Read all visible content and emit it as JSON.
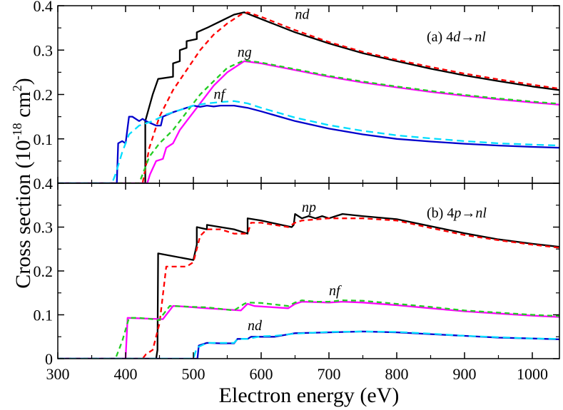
{
  "chart_data": {
    "type": "line",
    "xlabel": "Electron energy (eV)",
    "ylabel_text": "Cross section (10",
    "ylabel_exp": "-18",
    "ylabel_unit": " cm",
    "ylabel_unit_exp": "2",
    "ylabel_close": ")",
    "xlim": [
      300,
      1040
    ],
    "xticks": [
      "300",
      "400",
      "500",
      "600",
      "700",
      "800",
      "900",
      "1000"
    ],
    "xtick_values": [
      300,
      400,
      500,
      600,
      700,
      800,
      900,
      1000
    ],
    "panels": [
      {
        "id": "a",
        "label_prefix": "(a)  4",
        "label_sub": "d",
        "label_arrow": "→",
        "label_nl": "nl",
        "ylim": [
          0,
          0.4
        ],
        "yticks": [
          "0.1",
          "0.2",
          "0.3",
          "0.4"
        ],
        "ytick_values": [
          0.1,
          0.2,
          0.3,
          0.4
        ],
        "annotations": [
          {
            "text": "nd",
            "x": 650,
            "y": 0.37
          },
          {
            "text": "ng",
            "x": 565,
            "y": 0.285
          },
          {
            "text": "nf",
            "x": 530,
            "y": 0.19
          }
        ],
        "series": [
          {
            "name": "nd solid",
            "color": "#000000",
            "dash": "",
            "x": [
              300,
              429,
              429,
              440,
              448,
              448,
              470,
              470,
              480,
              480,
              490,
              490,
              505,
              505,
              520,
              540,
              560,
              575,
              600,
              650,
              700,
              750,
              800,
              850,
              900,
              950,
              1000,
              1040
            ],
            "y": [
              0,
              0,
              0.14,
              0.2,
              0.235,
              0.235,
              0.24,
              0.27,
              0.275,
              0.3,
              0.305,
              0.32,
              0.325,
              0.34,
              0.35,
              0.365,
              0.38,
              0.385,
              0.37,
              0.34,
              0.315,
              0.293,
              0.275,
              0.258,
              0.243,
              0.23,
              0.218,
              0.21
            ]
          },
          {
            "name": "nd dashed",
            "color": "#ff0000",
            "dash": "7,5",
            "x": [
              300,
              425,
              435,
              450,
              470,
              490,
              510,
              530,
              550,
              570,
              580,
              600,
              650,
              700,
              750,
              800,
              850,
              900,
              950,
              1000,
              1040
            ],
            "y": [
              0,
              0,
              0.08,
              0.15,
              0.21,
              0.255,
              0.3,
              0.335,
              0.36,
              0.38,
              0.385,
              0.375,
              0.345,
              0.318,
              0.296,
              0.278,
              0.262,
              0.247,
              0.234,
              0.222,
              0.213
            ]
          },
          {
            "name": "ng solid",
            "color": "#ff00ff",
            "dash": "",
            "x": [
              300,
              432,
              436,
              445,
              455,
              460,
              470,
              480,
              490,
              500,
              515,
              530,
              550,
              575,
              600,
              650,
              700,
              750,
              800,
              850,
              900,
              950,
              1000,
              1040
            ],
            "y": [
              0,
              0,
              0.02,
              0.05,
              0.055,
              0.08,
              0.09,
              0.12,
              0.14,
              0.16,
              0.19,
              0.22,
              0.25,
              0.275,
              0.27,
              0.255,
              0.24,
              0.227,
              0.216,
              0.206,
              0.197,
              0.189,
              0.182,
              0.177
            ]
          },
          {
            "name": "ng dashed",
            "color": "#22cc22",
            "dash": "7,5",
            "x": [
              300,
              420,
              425,
              435,
              450,
              470,
              490,
              510,
              530,
              550,
              575,
              600,
              650,
              700,
              750,
              800,
              850,
              900,
              950,
              1000,
              1040
            ],
            "y": [
              0,
              0,
              0.02,
              0.06,
              0.09,
              0.12,
              0.16,
              0.2,
              0.23,
              0.26,
              0.277,
              0.272,
              0.257,
              0.242,
              0.229,
              0.218,
              0.208,
              0.199,
              0.191,
              0.184,
              0.179
            ]
          },
          {
            "name": "nf solid",
            "color": "#0000cc",
            "dash": "",
            "x": [
              300,
              387,
              389,
              395,
              400,
              405,
              410,
              420,
              425,
              430,
              445,
              452,
              455,
              470,
              480,
              490,
              500,
              510,
              520,
              530,
              540,
              560,
              580,
              600,
              650,
              700,
              750,
              800,
              850,
              900,
              950,
              1000,
              1040
            ],
            "y": [
              0,
              0,
              0.09,
              0.095,
              0.09,
              0.15,
              0.15,
              0.14,
              0.145,
              0.14,
              0.13,
              0.13,
              0.15,
              0.16,
              0.165,
              0.17,
              0.175,
              0.172,
              0.175,
              0.173,
              0.175,
              0.175,
              0.17,
              0.162,
              0.14,
              0.123,
              0.11,
              0.1,
              0.094,
              0.089,
              0.085,
              0.082,
              0.08
            ]
          },
          {
            "name": "nf dashed",
            "color": "#00ddff",
            "dash": "10,6",
            "x": [
              300,
              380,
              385,
              395,
              405,
              420,
              440,
              460,
              480,
              500,
              520,
              540,
              560,
              580,
              600,
              650,
              700,
              750,
              800,
              850,
              900,
              950,
              1000,
              1040
            ],
            "y": [
              0,
              0,
              0.02,
              0.07,
              0.11,
              0.13,
              0.14,
              0.155,
              0.165,
              0.175,
              0.18,
              0.183,
              0.185,
              0.18,
              0.17,
              0.148,
              0.131,
              0.118,
              0.108,
              0.101,
              0.095,
              0.09,
              0.087,
              0.085
            ]
          }
        ]
      },
      {
        "id": "b",
        "label_prefix": "(b)  4",
        "label_sub": "p",
        "label_arrow": "→",
        "label_nl": "nl",
        "ylim": [
          0,
          0.4
        ],
        "yticks": [
          "0",
          "0.1",
          "0.2",
          "0.3",
          "0.4"
        ],
        "ytick_values": [
          0,
          0.1,
          0.2,
          0.3,
          0.4
        ],
        "annotations": [
          {
            "text": "np",
            "x": 660,
            "y": 0.335
          },
          {
            "text": "nf",
            "x": 700,
            "y": 0.145
          },
          {
            "text": "nd",
            "x": 580,
            "y": 0.065
          }
        ],
        "series": [
          {
            "name": "np solid",
            "color": "#000000",
            "dash": "",
            "x": [
              300,
              445,
              447,
              448,
              500,
              505,
              505,
              520,
              520,
              560,
              580,
              580,
              600,
              645,
              648,
              650,
              660,
              670,
              680,
              690,
              700,
              710,
              720,
              750,
              800,
              850,
              900,
              950,
              1000,
              1040
            ],
            "y": [
              0,
              0,
              0.02,
              0.24,
              0.225,
              0.26,
              0.3,
              0.295,
              0.305,
              0.295,
              0.285,
              0.32,
              0.315,
              0.3,
              0.305,
              0.33,
              0.32,
              0.325,
              0.32,
              0.325,
              0.32,
              0.325,
              0.33,
              0.325,
              0.318,
              0.302,
              0.286,
              0.272,
              0.262,
              0.255
            ]
          },
          {
            "name": "np dashed",
            "color": "#ff0000",
            "dash": "7,5",
            "x": [
              300,
              425,
              430,
              440,
              450,
              460,
              470,
              490,
              500,
              510,
              520,
              540,
              560,
              580,
              585,
              600,
              640,
              650,
              660,
              700,
              750,
              800,
              850,
              900,
              950,
              1000,
              1040
            ],
            "y": [
              0,
              0,
              0.01,
              0.02,
              0.08,
              0.21,
              0.21,
              0.21,
              0.22,
              0.28,
              0.295,
              0.295,
              0.285,
              0.285,
              0.31,
              0.31,
              0.3,
              0.31,
              0.315,
              0.32,
              0.32,
              0.315,
              0.298,
              0.282,
              0.27,
              0.26,
              0.253
            ]
          },
          {
            "name": "nf solid",
            "color": "#ff00ff",
            "dash": "",
            "x": [
              300,
              400,
              403,
              455,
              470,
              475,
              520,
              570,
              580,
              590,
              640,
              650,
              660,
              700,
              720,
              750,
              800,
              850,
              900,
              950,
              1000,
              1040
            ],
            "y": [
              0,
              0,
              0.093,
              0.09,
              0.12,
              0.12,
              0.115,
              0.11,
              0.125,
              0.12,
              0.115,
              0.125,
              0.13,
              0.128,
              0.13,
              0.128,
              0.122,
              0.115,
              0.108,
              0.103,
              0.098,
              0.095
            ]
          },
          {
            "name": "nf dashed",
            "color": "#22cc22",
            "dash": "7,5",
            "x": [
              300,
              385,
              395,
              405,
              420,
              440,
              450,
              455,
              465,
              470,
              500,
              520,
              560,
              575,
              580,
              600,
              640,
              650,
              660,
              680,
              700,
              720,
              750,
              800,
              850,
              900,
              950,
              1000,
              1040
            ],
            "y": [
              0,
              0,
              0.04,
              0.093,
              0.093,
              0.09,
              0.088,
              0.1,
              0.12,
              0.12,
              0.118,
              0.117,
              0.11,
              0.125,
              0.128,
              0.127,
              0.12,
              0.128,
              0.133,
              0.13,
              0.13,
              0.133,
              0.132,
              0.125,
              0.118,
              0.11,
              0.105,
              0.1,
              0.097
            ]
          },
          {
            "name": "nd solid",
            "color": "#0000cc",
            "dash": "",
            "x": [
              300,
              506,
              508,
              520,
              540,
              560,
              565,
              580,
              585,
              600,
              620,
              650,
              700,
              750,
              800,
              850,
              900,
              950,
              1000,
              1040
            ],
            "y": [
              0,
              0,
              0.03,
              0.036,
              0.035,
              0.035,
              0.045,
              0.045,
              0.05,
              0.05,
              0.05,
              0.058,
              0.06,
              0.062,
              0.06,
              0.056,
              0.052,
              0.048,
              0.046,
              0.044
            ]
          },
          {
            "name": "nd dashed",
            "color": "#00ddff",
            "dash": "10,6",
            "x": [
              300,
              500,
              505,
              520,
              540,
              560,
              565,
              580,
              600,
              620,
              650,
              700,
              750,
              800,
              850,
              900,
              950,
              1000,
              1040
            ],
            "y": [
              0,
              0,
              0.025,
              0.036,
              0.036,
              0.036,
              0.045,
              0.045,
              0.051,
              0.052,
              0.057,
              0.061,
              0.062,
              0.061,
              0.057,
              0.052,
              0.049,
              0.046,
              0.045
            ]
          }
        ]
      }
    ]
  }
}
